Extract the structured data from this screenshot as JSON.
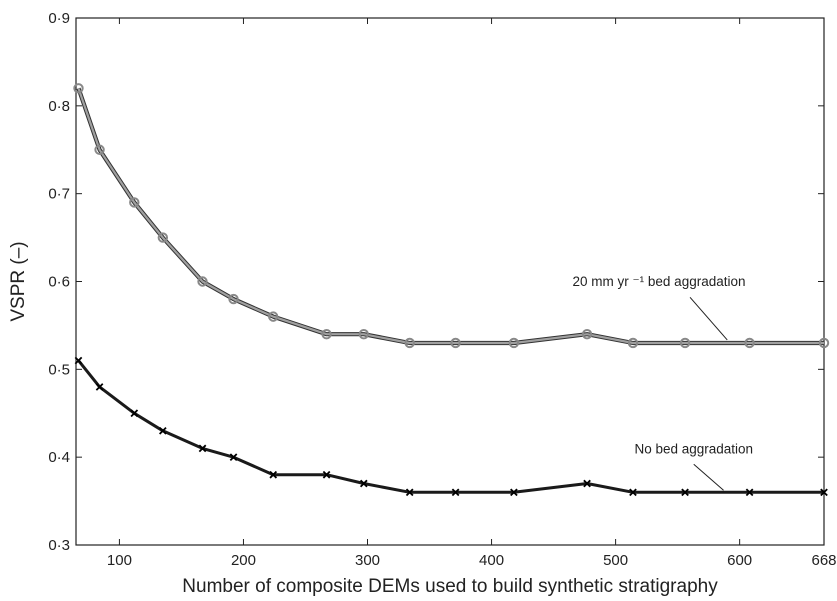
{
  "chart_data": {
    "type": "line",
    "title": "",
    "xlabel": "Number of composite DEMs used to build synthetic stratigraphy",
    "ylabel": "VSPR (–)",
    "xlim": [
      65,
      668
    ],
    "ylim": [
      0.3,
      0.9
    ],
    "x_ticks": [
      100,
      200,
      300,
      400,
      500,
      600,
      668
    ],
    "y_ticks": [
      0.3,
      0.4,
      0.5,
      0.6,
      0.7,
      0.8,
      0.9
    ],
    "y_tick_labels": [
      "0·3",
      "0·4",
      "0·5",
      "0·6",
      "0·7",
      "0·8",
      "0·9"
    ],
    "grid": false,
    "x": [
      67,
      84,
      112,
      135,
      167,
      192,
      224,
      267,
      297,
      334,
      371,
      418,
      477,
      514,
      556,
      608,
      668
    ],
    "series": [
      {
        "name": "20 mm yr ⁻¹ bed aggradation",
        "marker": "circle",
        "color": "#8c8c8c",
        "values": [
          0.82,
          0.75,
          0.69,
          0.65,
          0.6,
          0.58,
          0.56,
          0.54,
          0.54,
          0.53,
          0.53,
          0.53,
          0.54,
          0.53,
          0.53,
          0.53,
          0.53
        ]
      },
      {
        "name": "No bed aggradation",
        "marker": "cross",
        "color": "#1a1a1a",
        "values": [
          0.51,
          0.48,
          0.45,
          0.43,
          0.41,
          0.4,
          0.38,
          0.38,
          0.37,
          0.36,
          0.36,
          0.36,
          0.37,
          0.36,
          0.36,
          0.36,
          0.36
        ]
      }
    ],
    "annotations": [
      {
        "text": "20 mm yr ⁻¹ bed aggradation",
        "series": 0
      },
      {
        "text": "No bed aggradation",
        "series": 1
      }
    ]
  }
}
